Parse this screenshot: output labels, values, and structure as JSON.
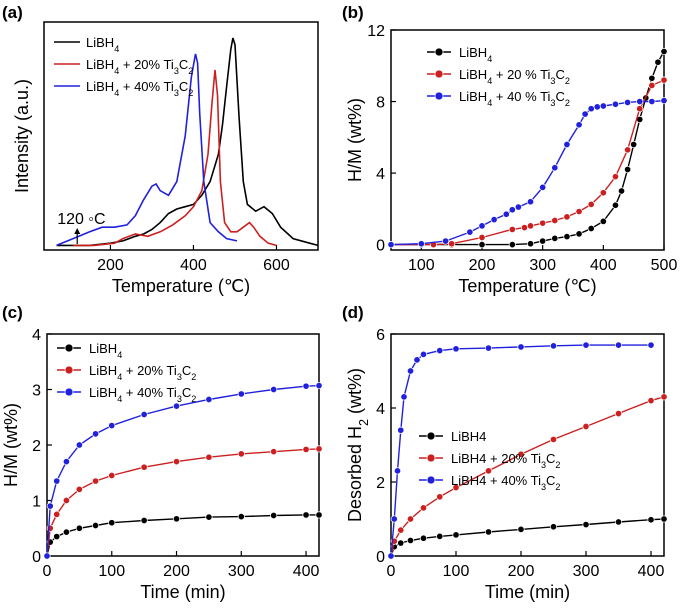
{
  "charts": [
    {
      "panel_label": "(a)",
      "type": "line",
      "xlabel": "Temperature (℃)",
      "ylabel": "Intensity (a.u.)",
      "xlim": [
        40,
        700
      ],
      "xticks": [
        200,
        400,
        600
      ],
      "yticks": [],
      "legend_position": "top-left",
      "annotation": "120 ◦C",
      "annotation_x": 120,
      "series": [
        {
          "name_base": "LiBH",
          "name_sub": "4",
          "name_rest": "",
          "color": "#000000",
          "x": [
            70,
            150,
            200,
            230,
            260,
            280,
            300,
            320,
            340,
            360,
            380,
            400,
            420,
            440,
            460,
            470,
            480,
            490,
            495,
            500,
            510,
            520,
            530,
            550,
            570,
            590,
            610,
            640,
            680,
            700
          ],
          "y": [
            0.02,
            0.02,
            0.03,
            0.04,
            0.06,
            0.07,
            0.09,
            0.12,
            0.16,
            0.18,
            0.19,
            0.2,
            0.24,
            0.3,
            0.42,
            0.55,
            0.72,
            0.88,
            0.93,
            0.9,
            0.58,
            0.3,
            0.2,
            0.17,
            0.19,
            0.16,
            0.1,
            0.05,
            0.03,
            0.02
          ]
        },
        {
          "name_base": "LiBH",
          "name_sub": "4",
          "name_rest": " + 20% Ti",
          "name_sub2": "3",
          "name_rest2": "C",
          "name_sub3": "2",
          "color": "#cc2020",
          "x": [
            110,
            160,
            210,
            230,
            260,
            290,
            320,
            350,
            380,
            400,
            420,
            435,
            445,
            452,
            458,
            465,
            475,
            490,
            505,
            520,
            535,
            545,
            560,
            580,
            600
          ],
          "y": [
            0.02,
            0.02,
            0.03,
            0.05,
            0.07,
            0.06,
            0.08,
            0.11,
            0.15,
            0.19,
            0.26,
            0.42,
            0.65,
            0.79,
            0.68,
            0.3,
            0.12,
            0.08,
            0.08,
            0.1,
            0.12,
            0.1,
            0.06,
            0.03,
            0.02
          ]
        },
        {
          "name_base": "LiBH",
          "name_sub": "4",
          "name_rest": " + 40% Ti",
          "name_sub2": "3",
          "name_rest2": "C",
          "name_sub3": "2",
          "color": "#2020dd",
          "x": [
            70,
            110,
            150,
            180,
            210,
            240,
            260,
            280,
            300,
            310,
            320,
            340,
            360,
            380,
            395,
            405,
            410,
            415,
            425,
            440,
            460,
            480,
            505
          ],
          "y": [
            0.02,
            0.05,
            0.08,
            0.1,
            0.1,
            0.11,
            0.15,
            0.22,
            0.28,
            0.29,
            0.26,
            0.24,
            0.3,
            0.5,
            0.76,
            0.86,
            0.82,
            0.6,
            0.3,
            0.12,
            0.08,
            0.05,
            0.04
          ]
        }
      ]
    },
    {
      "panel_label": "(b)",
      "type": "scatter",
      "xlabel": "Temperature (℃)",
      "ylabel": "H/M (wt%)",
      "xlim": [
        50,
        500
      ],
      "ylim": [
        -0.3,
        12
      ],
      "xticks": [
        100,
        200,
        300,
        400,
        500
      ],
      "yticks": [
        0,
        4,
        8,
        12
      ],
      "legend_position": "top-left",
      "series": [
        {
          "name_base": "LiBH",
          "name_sub": "4",
          "name_rest": "",
          "color": "#000000",
          "x": [
            50,
            100,
            150,
            200,
            250,
            280,
            300,
            320,
            340,
            360,
            380,
            400,
            420,
            430,
            440,
            450,
            460,
            470,
            480,
            490,
            500
          ],
          "y": [
            0,
            0,
            0,
            0,
            0,
            0.05,
            0.2,
            0.35,
            0.45,
            0.6,
            0.9,
            1.3,
            2.2,
            3.0,
            4.2,
            5.6,
            7.0,
            8.2,
            9.3,
            10.2,
            10.8
          ]
        },
        {
          "name_base": "LiBH",
          "name_sub": "4",
          "name_rest": " + 20 % Ti",
          "name_sub2": "3",
          "name_rest2": "C",
          "name_sub3": "2",
          "color": "#cc2020",
          "x": [
            50,
            120,
            150,
            200,
            250,
            270,
            280,
            300,
            320,
            340,
            360,
            380,
            400,
            420,
            440,
            460,
            480,
            500
          ],
          "y": [
            0,
            0,
            0.05,
            0.4,
            0.85,
            0.95,
            1.05,
            1.2,
            1.35,
            1.55,
            1.85,
            2.25,
            2.9,
            3.8,
            5.3,
            7.6,
            8.9,
            9.2
          ]
        },
        {
          "name_base": "LiBH",
          "name_sub": "4",
          "name_rest": " + 40 % Ti",
          "name_sub2": "3",
          "name_rest2": "C",
          "name_sub3": "2",
          "color": "#2020dd",
          "x": [
            50,
            100,
            140,
            180,
            200,
            220,
            240,
            250,
            260,
            280,
            300,
            320,
            340,
            360,
            370,
            380,
            390,
            400,
            420,
            440,
            460,
            480,
            500
          ],
          "y": [
            0,
            0.05,
            0.2,
            0.7,
            1.05,
            1.4,
            1.7,
            1.95,
            2.1,
            2.4,
            3.2,
            4.3,
            5.6,
            6.7,
            7.3,
            7.6,
            7.7,
            7.75,
            7.85,
            7.95,
            8.0,
            8.0,
            8.05
          ]
        }
      ]
    },
    {
      "panel_label": "(c)",
      "type": "scatter",
      "xlabel": "Time (min)",
      "ylabel": "H/M (wt%)",
      "xlim": [
        0,
        420
      ],
      "ylim": [
        0,
        4
      ],
      "xticks": [
        0,
        100,
        200,
        300,
        400
      ],
      "yticks": [
        0,
        1,
        2,
        3,
        4
      ],
      "legend_position": "top-left",
      "series": [
        {
          "name_base": "LiBH",
          "name_sub": "4",
          "name_rest": "",
          "color": "#000000",
          "x": [
            0,
            5,
            15,
            30,
            50,
            75,
            100,
            150,
            200,
            250,
            300,
            350,
            400,
            420
          ],
          "y": [
            0,
            0.25,
            0.35,
            0.43,
            0.5,
            0.55,
            0.6,
            0.64,
            0.67,
            0.7,
            0.71,
            0.73,
            0.74,
            0.74
          ]
        },
        {
          "name_base": "LiBH",
          "name_sub": "4",
          "name_rest": " + 20% Ti",
          "name_sub2": "3",
          "name_rest2": "C",
          "name_sub3": "2",
          "color": "#cc2020",
          "x": [
            0,
            5,
            15,
            30,
            50,
            75,
            100,
            150,
            200,
            250,
            300,
            350,
            400,
            420
          ],
          "y": [
            0,
            0.5,
            0.75,
            1.0,
            1.2,
            1.35,
            1.45,
            1.6,
            1.7,
            1.78,
            1.84,
            1.88,
            1.92,
            1.93
          ]
        },
        {
          "name_base": "LiBH",
          "name_sub": "4",
          "name_rest": " + 40% Ti",
          "name_sub2": "3",
          "name_rest2": "C",
          "name_sub3": "2",
          "color": "#2020dd",
          "x": [
            0,
            5,
            15,
            30,
            50,
            75,
            100,
            150,
            200,
            250,
            300,
            350,
            400,
            420
          ],
          "y": [
            0,
            0.9,
            1.35,
            1.7,
            2.0,
            2.2,
            2.35,
            2.55,
            2.7,
            2.82,
            2.92,
            3.0,
            3.06,
            3.07
          ]
        }
      ]
    },
    {
      "panel_label": "(d)",
      "type": "scatter",
      "xlabel": "Time (min)",
      "ylabel_base": "Desorbed H",
      "ylabel_sub": "2",
      "ylabel_rest": " (wt%)",
      "xlim": [
        0,
        420
      ],
      "ylim": [
        0,
        6
      ],
      "xticks": [
        0,
        100,
        200,
        300,
        400
      ],
      "yticks": [
        0,
        2,
        4,
        6
      ],
      "legend_position": "bottom-right",
      "series": [
        {
          "name_base": "LiBH4",
          "name_sub": "",
          "name_rest": "",
          "color": "#000000",
          "x": [
            0,
            5,
            15,
            30,
            50,
            75,
            100,
            150,
            200,
            250,
            300,
            350,
            400,
            420
          ],
          "y": [
            0,
            0.25,
            0.35,
            0.42,
            0.48,
            0.53,
            0.57,
            0.65,
            0.72,
            0.79,
            0.85,
            0.92,
            0.98,
            1.0
          ]
        },
        {
          "name_base": "LiBH4 + 20% Ti",
          "name_sub": "3",
          "name_rest": "C",
          "name_sub2": "2",
          "name_rest2": "",
          "color": "#cc2020",
          "x": [
            0,
            5,
            15,
            30,
            50,
            75,
            100,
            150,
            200,
            250,
            300,
            350,
            400,
            420
          ],
          "y": [
            0,
            0.4,
            0.7,
            1.0,
            1.3,
            1.6,
            1.85,
            2.3,
            2.75,
            3.15,
            3.5,
            3.85,
            4.2,
            4.3
          ]
        },
        {
          "name_base": "LiBH4 + 40% Ti",
          "name_sub": "3",
          "name_rest": "C",
          "name_sub2": "2",
          "name_rest2": "",
          "color": "#2020dd",
          "x": [
            0,
            5,
            10,
            15,
            20,
            30,
            40,
            50,
            75,
            100,
            150,
            200,
            250,
            300,
            350,
            400
          ],
          "y": [
            0,
            1.0,
            2.3,
            3.4,
            4.3,
            5.0,
            5.3,
            5.45,
            5.55,
            5.6,
            5.62,
            5.65,
            5.68,
            5.7,
            5.7,
            5.7
          ]
        }
      ]
    }
  ]
}
